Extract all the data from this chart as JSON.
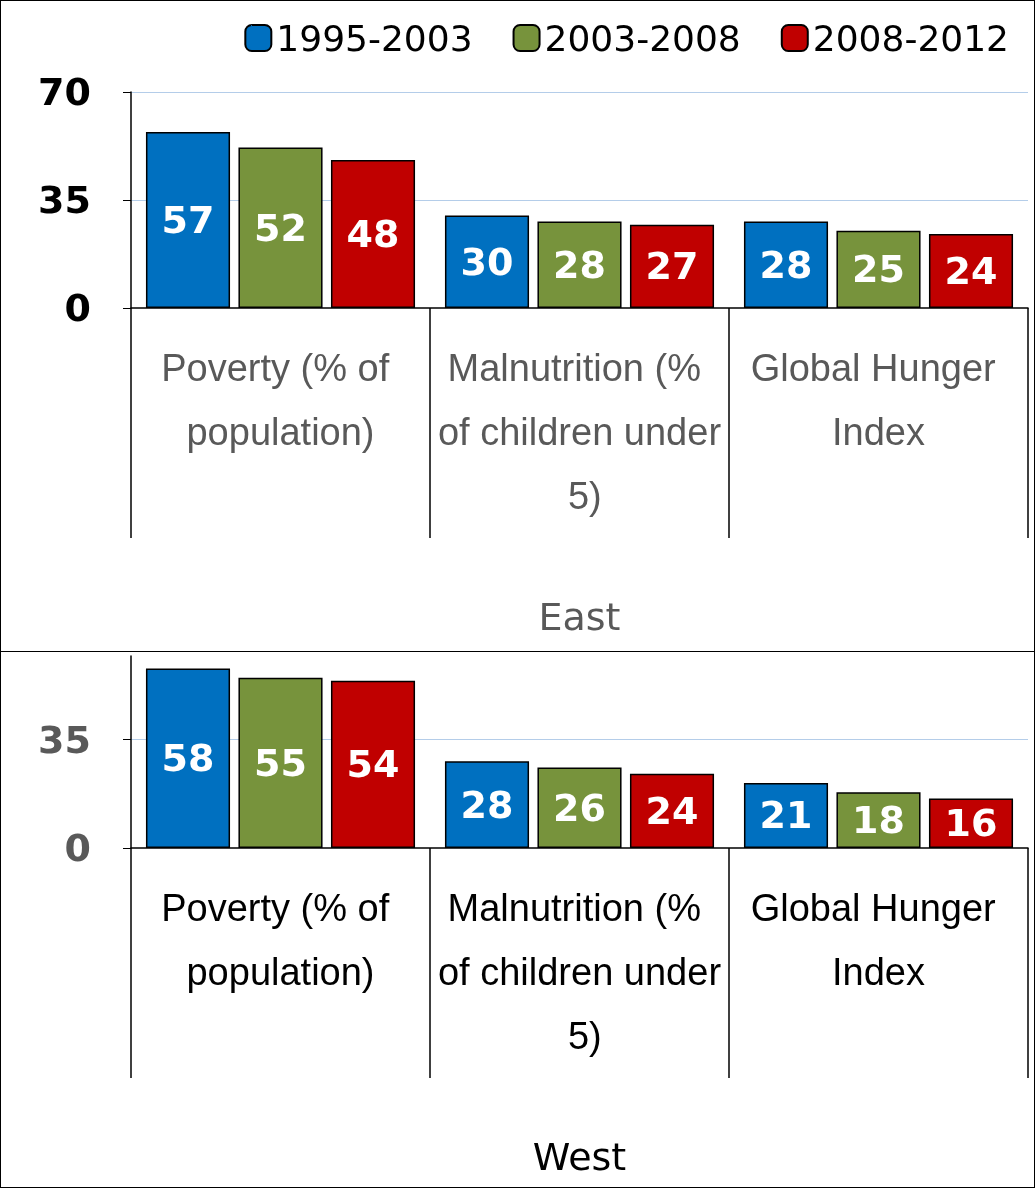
{
  "chart_data": [
    {
      "type": "bar",
      "xlabel": "East",
      "categories": [
        "Poverty (% of population)",
        "Malnutrition (% of children under 5)",
        "Global Hunger Index"
      ],
      "series": [
        {
          "name": "1995-2003",
          "color": "#0070c0",
          "values": [
            57,
            30,
            28
          ]
        },
        {
          "name": "2003-2008",
          "color": "#77933c",
          "values": [
            52,
            28,
            25
          ]
        },
        {
          "name": "2008-2012",
          "color": "#c00000",
          "values": [
            48,
            27,
            24
          ]
        }
      ],
      "ylim": [
        0,
        70
      ],
      "yticks": [
        0,
        35,
        70
      ],
      "ref_lines": [
        {
          "axis": "y",
          "value": 35,
          "color": "#b4cde9"
        },
        {
          "axis": "y",
          "value": 70,
          "color": "#b4cde9"
        }
      ],
      "legend": "top right",
      "data_labels": true
    },
    {
      "type": "bar",
      "xlabel": "West",
      "categories": [
        "Poverty (% of population)",
        "Malnutrition (% of children under 5)",
        "Global Hunger Index"
      ],
      "series": [
        {
          "color": "#0070c0",
          "values": [
            58,
            28,
            21
          ]
        },
        {
          "color": "#77933c",
          "values": [
            55,
            26,
            18
          ]
        },
        {
          "color": "#c00000",
          "values": [
            54,
            24,
            16
          ]
        }
      ],
      "ylim": [
        0,
        62
      ],
      "yticks": [
        0,
        35
      ],
      "ref_lines": [
        {
          "axis": "y",
          "value": 35,
          "color": "#b4cde9"
        }
      ],
      "data_labels": true
    }
  ]
}
